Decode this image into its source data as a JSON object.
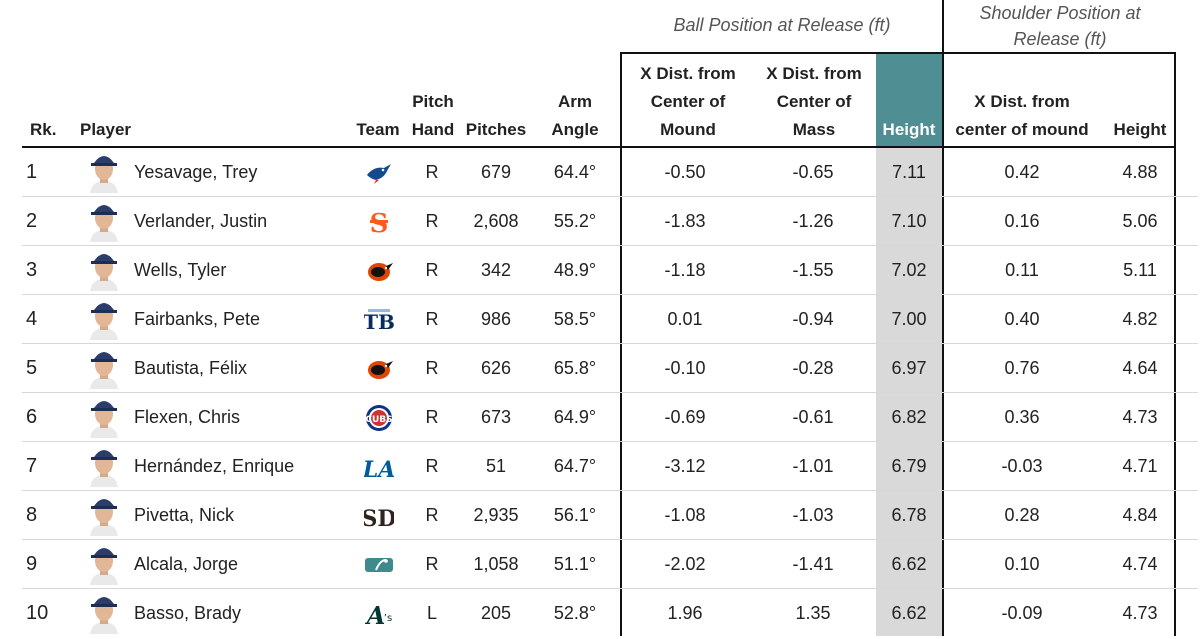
{
  "groups": {
    "ball": "Ball Position at Release (ft)",
    "shoulder": "Shoulder Position at Release (ft)"
  },
  "headers": {
    "rk": "Rk.",
    "player": "Player",
    "team": "Team",
    "pitch_hand": "Pitch Hand",
    "pitches": "Pitches",
    "arm_angle": "Arm Angle",
    "x_mound": "X Dist. from Center of Mound",
    "x_mass": "X Dist. from Center of Mass",
    "height": "Height",
    "sh_x": "X Dist. from center of mound",
    "sh_height": "Height"
  },
  "colors": {
    "highlight_header": "#4f8e93",
    "highlight_column": "#d9d9d9"
  },
  "rows": [
    {
      "rk": "1",
      "player": "Yesavage, Trey",
      "team_icon": "blue-jays-logo-icon",
      "hand": "R",
      "pitches": "679",
      "arm": "64.4°",
      "x_mound": "-0.50",
      "x_mass": "-0.65",
      "height": "7.11",
      "sh_x": "0.42",
      "sh_h": "4.88"
    },
    {
      "rk": "2",
      "player": "Verlander, Justin",
      "team_icon": "giants-logo-icon",
      "hand": "R",
      "pitches": "2,608",
      "arm": "55.2°",
      "x_mound": "-1.83",
      "x_mass": "-1.26",
      "height": "7.10",
      "sh_x": "0.16",
      "sh_h": "5.06"
    },
    {
      "rk": "3",
      "player": "Wells, Tyler",
      "team_icon": "orioles-logo-icon",
      "hand": "R",
      "pitches": "342",
      "arm": "48.9°",
      "x_mound": "-1.18",
      "x_mass": "-1.55",
      "height": "7.02",
      "sh_x": "0.11",
      "sh_h": "5.11"
    },
    {
      "rk": "4",
      "player": "Fairbanks, Pete",
      "team_icon": "rays-logo-icon",
      "hand": "R",
      "pitches": "986",
      "arm": "58.5°",
      "x_mound": "0.01",
      "x_mass": "-0.94",
      "height": "7.00",
      "sh_x": "0.40",
      "sh_h": "4.82"
    },
    {
      "rk": "5",
      "player": "Bautista, Félix",
      "team_icon": "orioles-logo-icon",
      "hand": "R",
      "pitches": "626",
      "arm": "65.8°",
      "x_mound": "-0.10",
      "x_mass": "-0.28",
      "height": "6.97",
      "sh_x": "0.76",
      "sh_h": "4.64"
    },
    {
      "rk": "6",
      "player": "Flexen, Chris",
      "team_icon": "cubs-logo-icon",
      "hand": "R",
      "pitches": "673",
      "arm": "64.9°",
      "x_mound": "-0.69",
      "x_mass": "-0.61",
      "height": "6.82",
      "sh_x": "0.36",
      "sh_h": "4.73"
    },
    {
      "rk": "7",
      "player": "Hernández, Enrique",
      "team_icon": "dodgers-logo-icon",
      "hand": "R",
      "pitches": "51",
      "arm": "64.7°",
      "x_mound": "-3.12",
      "x_mass": "-1.01",
      "height": "6.79",
      "sh_x": "-0.03",
      "sh_h": "4.71"
    },
    {
      "rk": "8",
      "player": "Pivetta, Nick",
      "team_icon": "padres-logo-icon",
      "hand": "R",
      "pitches": "2,935",
      "arm": "56.1°",
      "x_mound": "-1.08",
      "x_mass": "-1.03",
      "height": "6.78",
      "sh_x": "0.28",
      "sh_h": "4.84"
    },
    {
      "rk": "9",
      "player": "Alcala, Jorge",
      "team_icon": "mlb-logo-icon",
      "hand": "R",
      "pitches": "1,058",
      "arm": "51.1°",
      "x_mound": "-2.02",
      "x_mass": "-1.41",
      "height": "6.62",
      "sh_x": "0.10",
      "sh_h": "4.74"
    },
    {
      "rk": "10",
      "player": "Basso, Brady",
      "team_icon": "athletics-logo-icon",
      "hand": "L",
      "pitches": "205",
      "arm": "52.8°",
      "x_mound": "1.96",
      "x_mass": "1.35",
      "height": "6.62",
      "sh_x": "-0.09",
      "sh_h": "4.73"
    }
  ]
}
